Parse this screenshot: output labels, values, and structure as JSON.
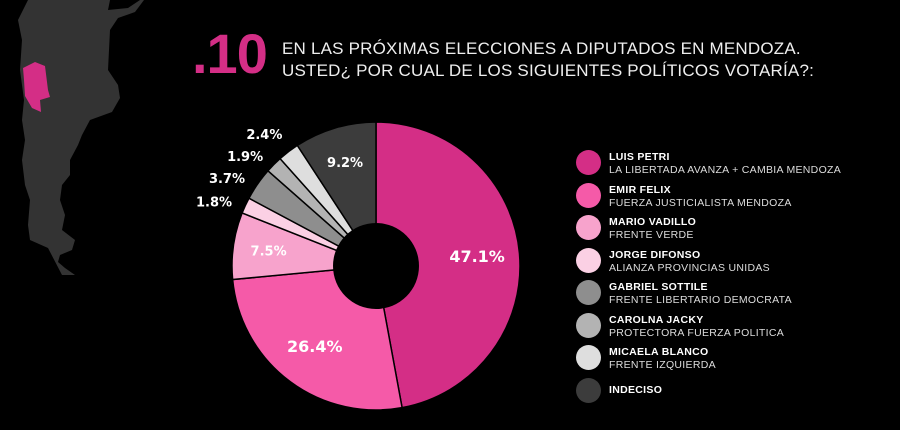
{
  "header": {
    "number": ".10",
    "question_line1": "EN LAS PRÓXIMAS ELECCIONES A DIPUTADOS EN MENDOZA.",
    "question_line2": "USTED¿ POR CUAL DE LOS SIGUIENTES POLÍTICOS VOTARÍA?:"
  },
  "map": {
    "highlight_color": "#d42e86",
    "land_color": "#333333"
  },
  "chart_data": {
    "type": "pie",
    "donut": true,
    "start": "top, clockwise",
    "series": [
      {
        "name": "LUIS PETRI",
        "party": "LA LIBERTADA AVANZA + CAMBIA MENDOZA",
        "value": 47.1,
        "label": "47.1%",
        "color": "#d42e86"
      },
      {
        "name": "EMIR FELIX",
        "party": "FUERZA JUSTICIALISTA MENDOZA",
        "value": 26.4,
        "label": "26.4%",
        "color": "#f55aa8"
      },
      {
        "name": "MARIO VADILLO",
        "party": "FRENTE VERDE",
        "value": 7.5,
        "label": "7.5%",
        "color": "#f7a3cc"
      },
      {
        "name": "JORGE DIFONSO",
        "party": "ALIANZA PROVINCIAS UNIDAS",
        "value": 1.8,
        "label": "1.8%",
        "color": "#fbd0e4"
      },
      {
        "name": "GABRIEL SOTTILE",
        "party": "FRENTE LIBERTARIO DEMOCRATA",
        "value": 3.7,
        "label": "3.7%",
        "color": "#8e8e8e"
      },
      {
        "name": "CAROLNA JACKY",
        "party": "PROTECTORA FUERZA POLITICA",
        "value": 1.9,
        "label": "1.9%",
        "color": "#b3b3b3"
      },
      {
        "name": "MICAELA BLANCO",
        "party": "FRENTE IZQUIERDA",
        "value": 2.4,
        "label": "2.4%",
        "color": "#dedede"
      },
      {
        "name": "INDECISO",
        "party": "",
        "value": 9.2,
        "label": "9.2%",
        "color": "#3c3c3c"
      }
    ],
    "legend": "right"
  }
}
